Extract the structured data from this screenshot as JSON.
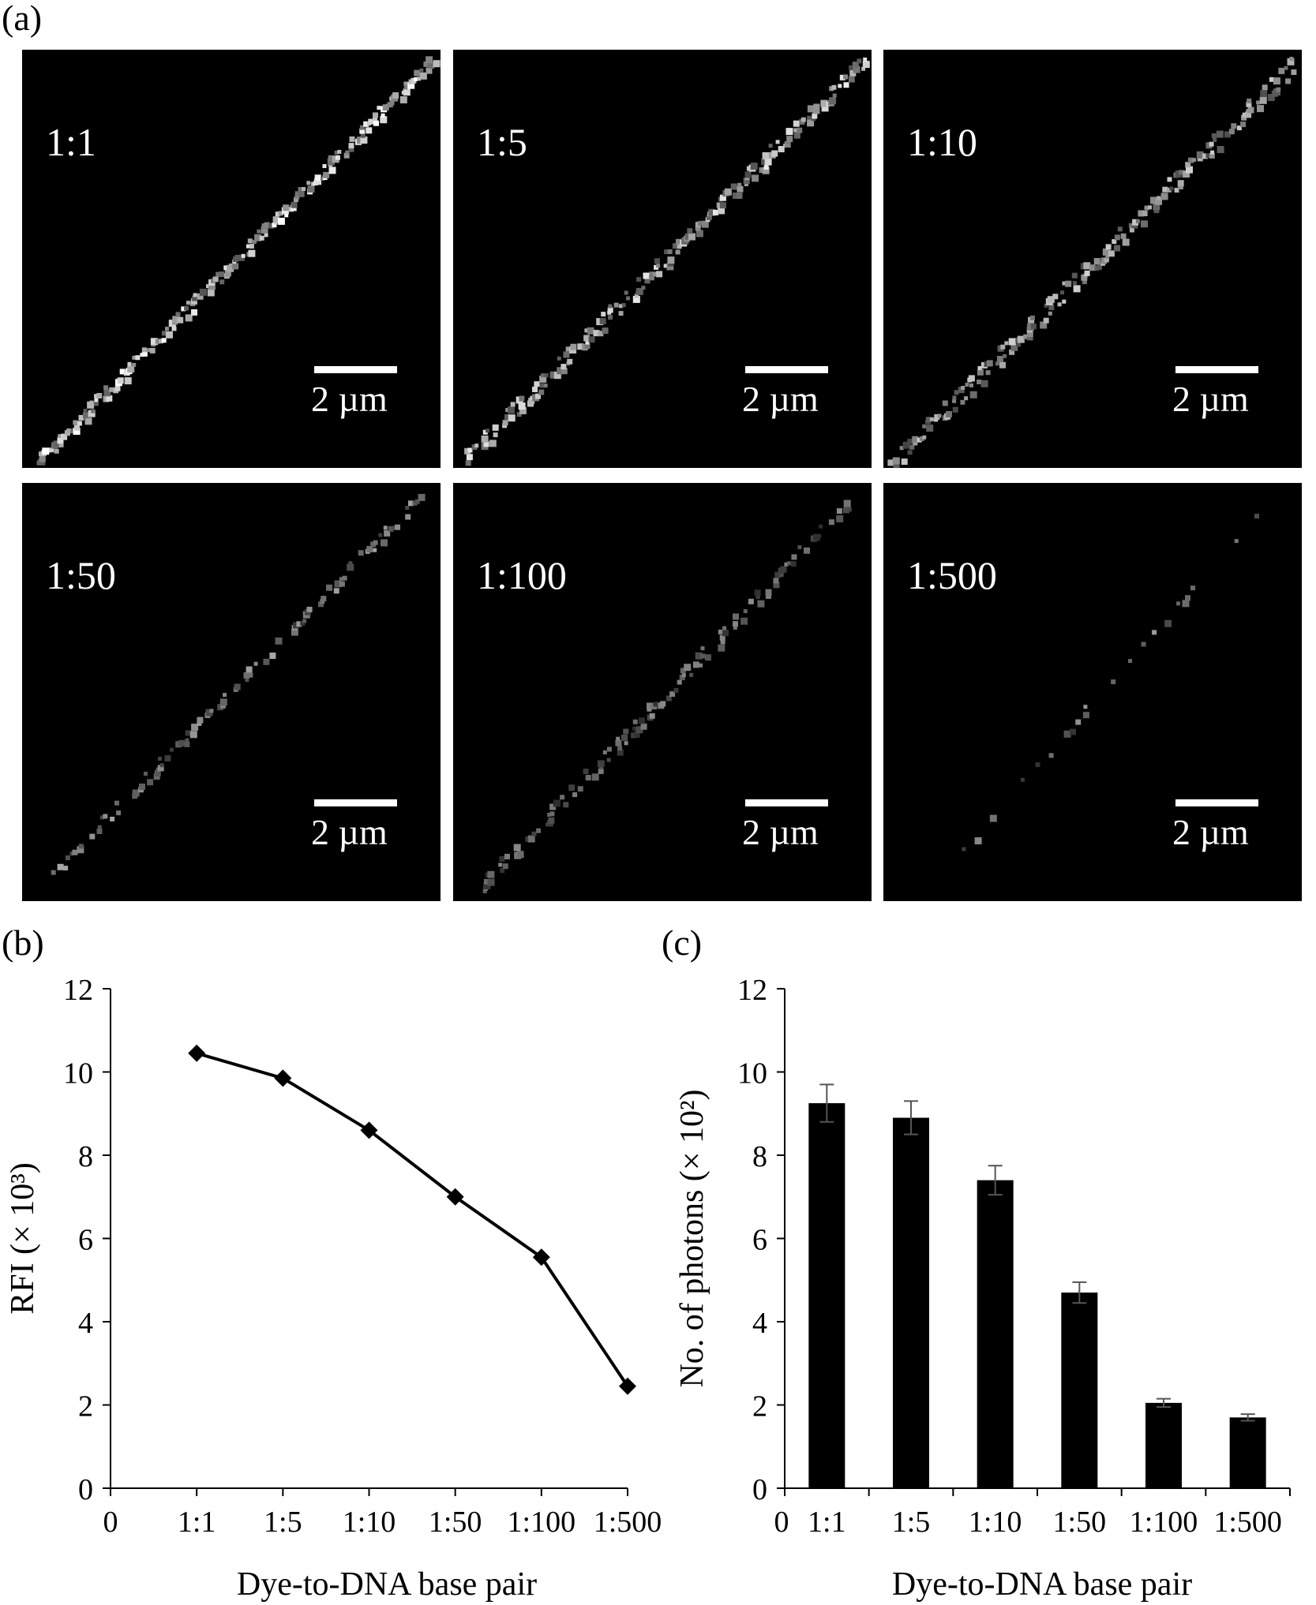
{
  "panel_a": {
    "label": "(a)",
    "images": [
      {
        "ratio": "1:1",
        "scale": "2 µm"
      },
      {
        "ratio": "1:5",
        "scale": "2 µm"
      },
      {
        "ratio": "1:10",
        "scale": "2 µm"
      },
      {
        "ratio": "1:50",
        "scale": "2 µm"
      },
      {
        "ratio": "1:100",
        "scale": "2 µm"
      },
      {
        "ratio": "1:500",
        "scale": "2 µm"
      }
    ]
  },
  "chart_data": [
    {
      "panel": "(b)",
      "type": "line",
      "categories": [
        "1:1",
        "1:5",
        "1:10",
        "1:50",
        "1:100",
        "1:500"
      ],
      "x_tick_labels": [
        "0",
        "1:1",
        "1:5",
        "1:10",
        "1:50",
        "1:100",
        "1:500"
      ],
      "values": [
        10.45,
        9.85,
        8.6,
        7.0,
        5.55,
        2.45
      ],
      "xlabel": "Dye-to-DNA base pair",
      "ylabel": "RFI (× 10³)",
      "ylim": [
        0,
        12
      ],
      "yticks": [
        0,
        2,
        4,
        6,
        8,
        10,
        12
      ],
      "marker": "diamond",
      "color": "#000000",
      "grid": false
    },
    {
      "panel": "(c)",
      "type": "bar",
      "categories": [
        "1:1",
        "1:5",
        "1:10",
        "1:50",
        "1:100",
        "1:500"
      ],
      "zero_label": "0",
      "values": [
        9.25,
        8.9,
        7.4,
        4.7,
        2.05,
        1.7
      ],
      "errors": [
        0.45,
        0.4,
        0.35,
        0.25,
        0.1,
        0.08
      ],
      "xlabel": "Dye-to-DNA base pair",
      "ylabel": "No. of photons (× 10²)",
      "ylim": [
        0,
        12
      ],
      "yticks": [
        0,
        2,
        4,
        6,
        8,
        10,
        12
      ],
      "color": "#000000",
      "grid": false
    }
  ]
}
